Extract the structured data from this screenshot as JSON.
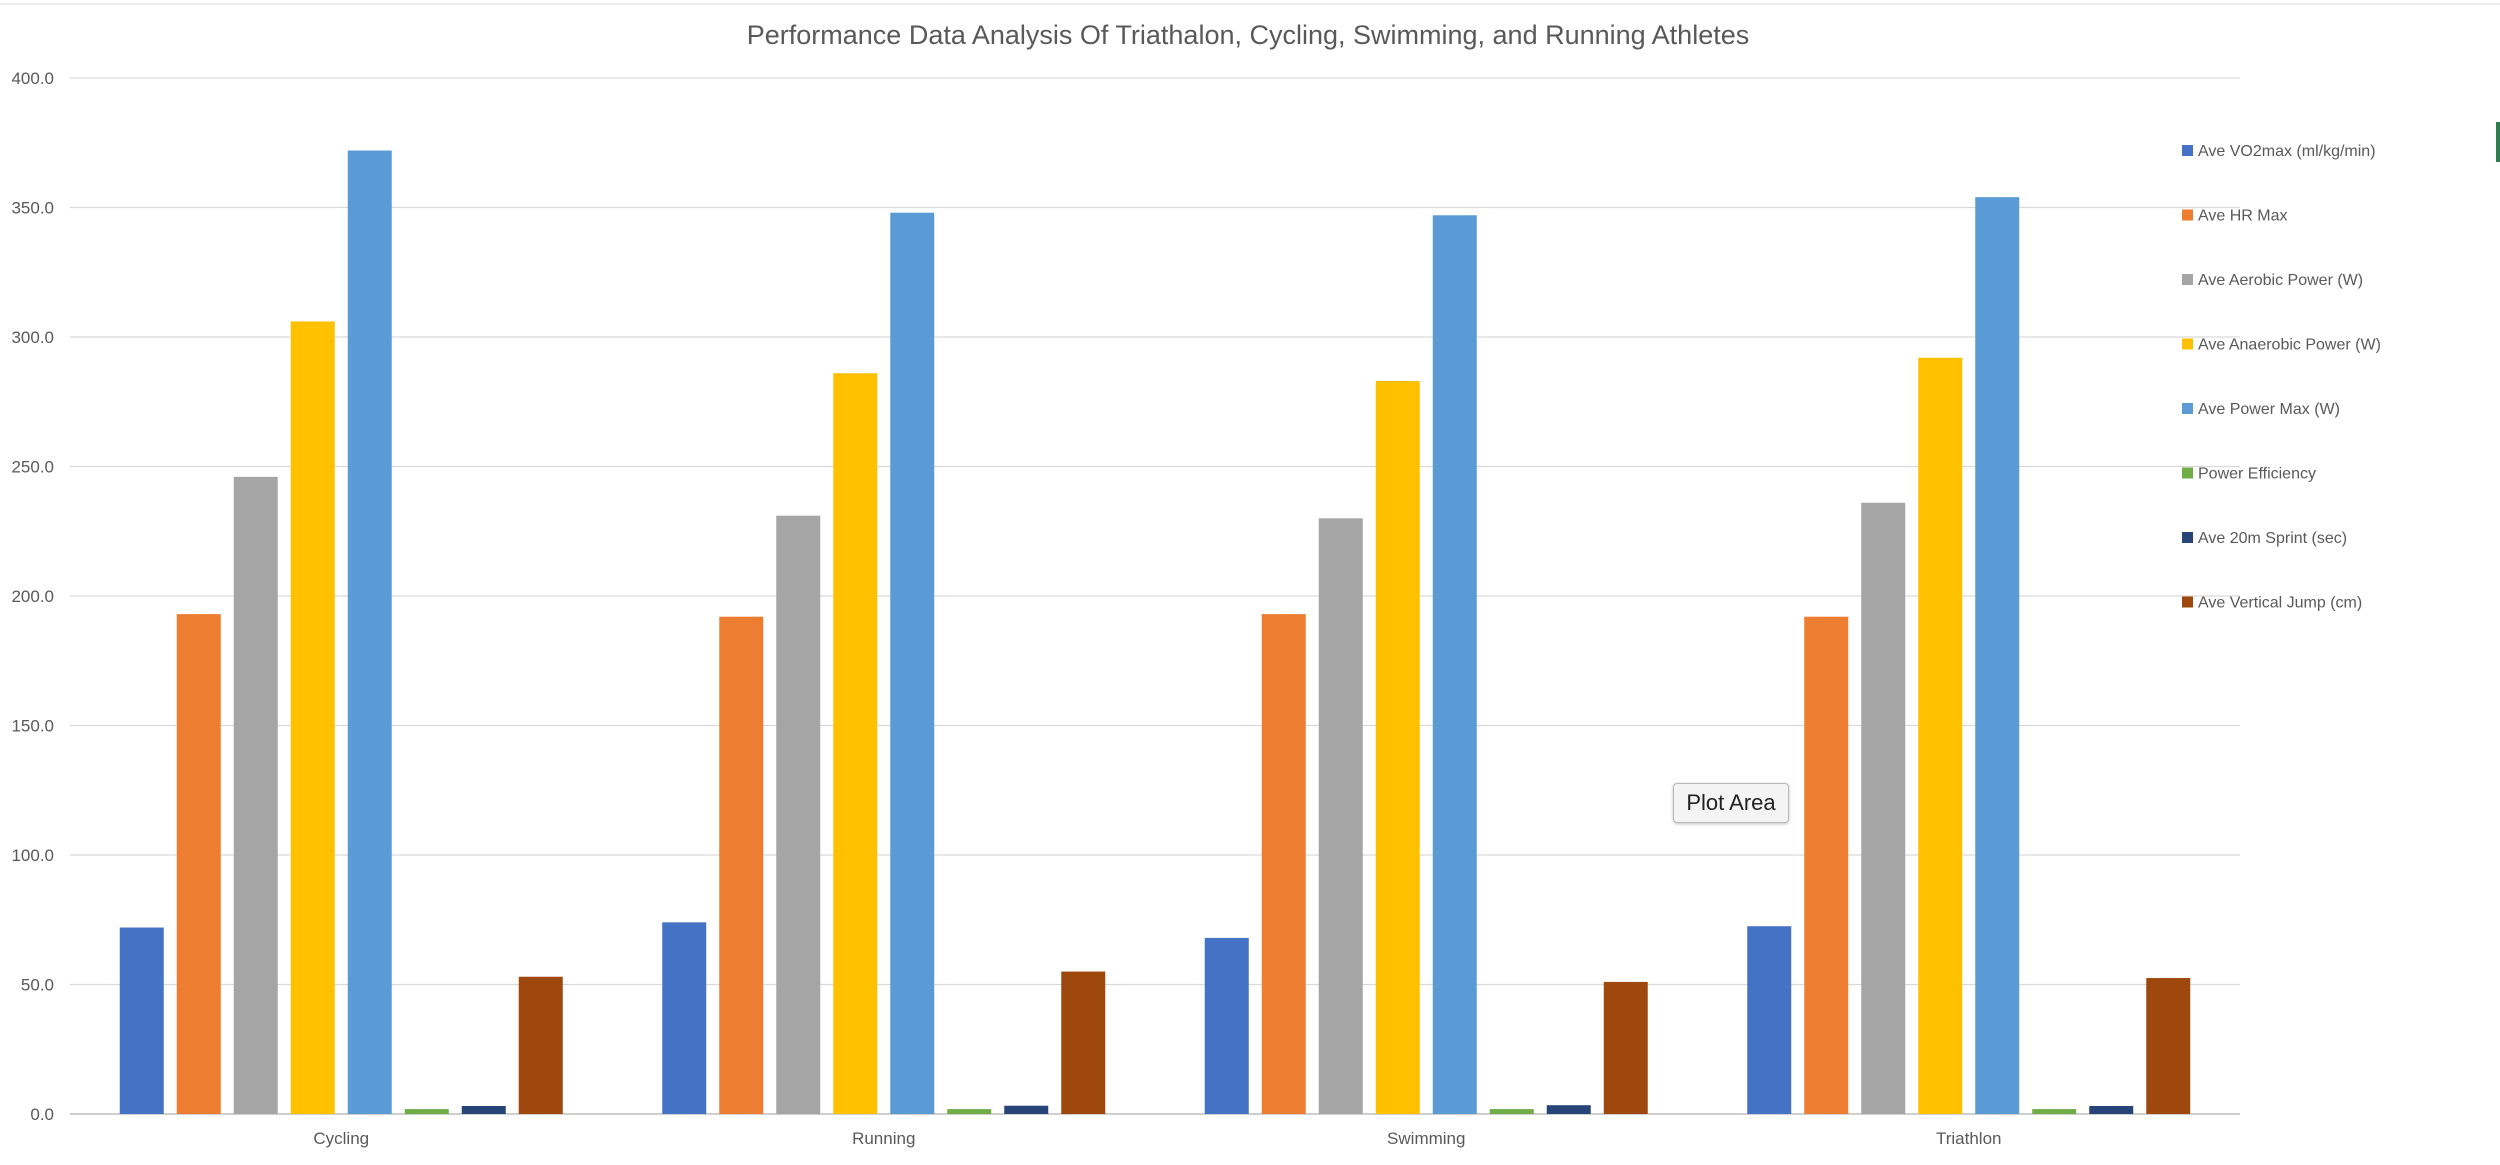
{
  "chart_data": {
    "type": "bar",
    "title": "Performance Data Analysis Of Triathalon, Cycling, Swimming, and Running Athletes",
    "categories": [
      "Cycling",
      "Running",
      "Swimming",
      "Triathlon"
    ],
    "ylim": [
      0,
      400
    ],
    "yticks": [
      "0.0",
      "50.0",
      "100.0",
      "150.0",
      "200.0",
      "250.0",
      "300.0",
      "350.0",
      "400.0"
    ],
    "ytick_values": [
      0,
      50,
      100,
      150,
      200,
      250,
      300,
      350,
      400
    ],
    "grid": true,
    "legend_position": "right",
    "series": [
      {
        "name": "Ave VO2max (ml/kg/min)",
        "color": "#4472c4",
        "values": [
          72,
          74,
          68,
          72.5
        ]
      },
      {
        "name": "Ave HR Max",
        "color": "#ed7d31",
        "values": [
          193,
          192,
          193,
          192
        ]
      },
      {
        "name": "Ave Aerobic Power (W)",
        "color": "#a5a5a5",
        "values": [
          246,
          231,
          230,
          236
        ]
      },
      {
        "name": "Ave Anaerobic Power (W)",
        "color": "#ffc000",
        "values": [
          306,
          286,
          283,
          292
        ]
      },
      {
        "name": "Ave Power Max (W)",
        "color": "#5b9bd5",
        "values": [
          372,
          348,
          347,
          354
        ]
      },
      {
        "name": "Power Efficiency",
        "color": "#70ad47",
        "values": [
          1.9,
          1.9,
          1.9,
          1.9
        ]
      },
      {
        "name": "Ave 20m Sprint (sec)",
        "color": "#264478",
        "values": [
          3.1,
          3.2,
          3.4,
          3.1
        ]
      },
      {
        "name": "Ave Vertical Jump (cm)",
        "color": "#9e480e",
        "values": [
          53,
          55,
          51,
          52.5
        ]
      }
    ]
  },
  "tooltip": {
    "text": "Plot Area"
  }
}
